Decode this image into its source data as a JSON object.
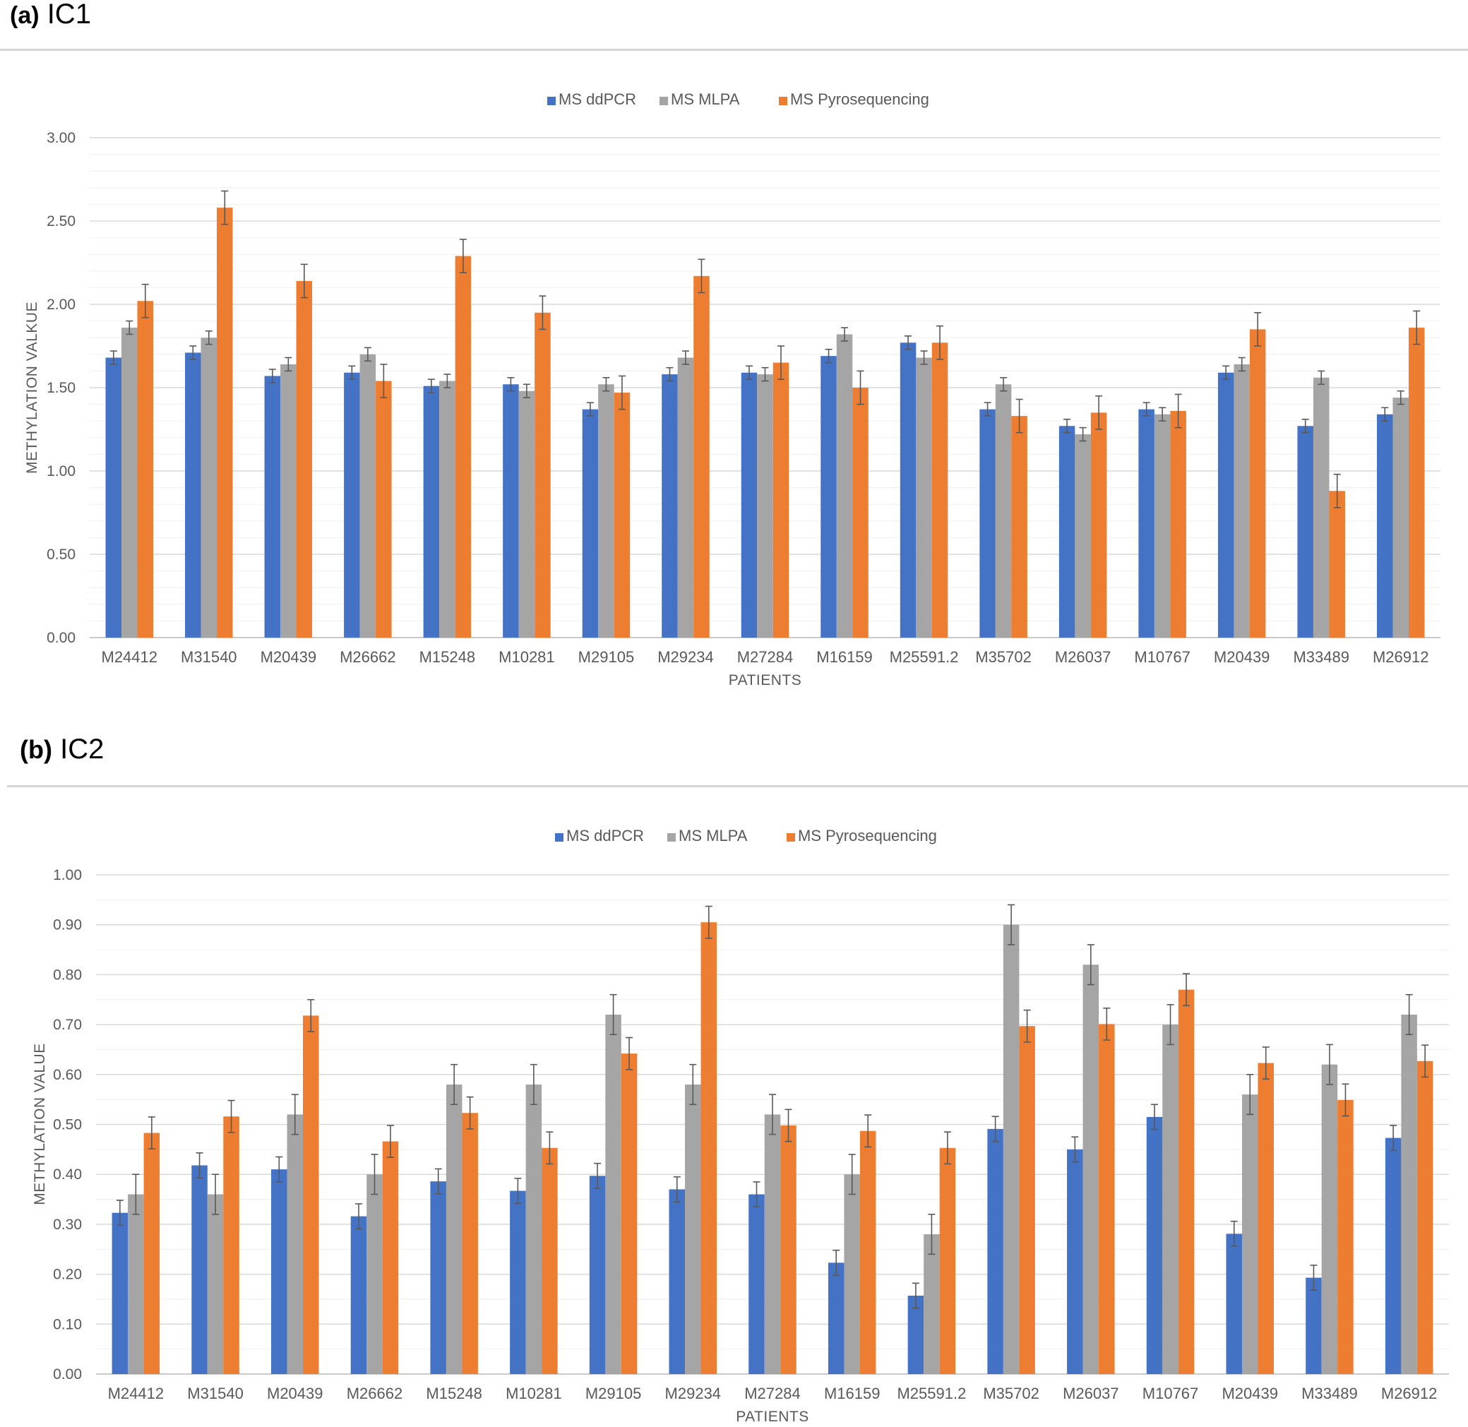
{
  "colors": {
    "ddpcr": "#4472C4",
    "mlpa": "#A5A5A5",
    "pyro": "#ED7D31",
    "grid": "#d9d9d9",
    "error": "#595959"
  },
  "panels": [
    {
      "letter": "(a)",
      "name": "IC1"
    },
    {
      "letter": "(b)",
      "name": "IC2"
    }
  ],
  "chart_data": [
    {
      "type": "bar",
      "ylabel": "METHYLATION VALKUE",
      "xlabel": "PATIENTS",
      "ylim": [
        0,
        3.0
      ],
      "ytick_step": 0.5,
      "ytick_labels": [
        "0.00",
        "0.50",
        "1.00",
        "1.50",
        "2.00",
        "2.50",
        "3.00"
      ],
      "grid": true,
      "legend": "top-center",
      "categories": [
        "M24412",
        "M31540",
        "M20439",
        "M26662",
        "M15248",
        "M10281",
        "M29105",
        "M29234",
        "M27284",
        "M16159",
        "M25591.2",
        "M35702",
        "M26037",
        "M10767",
        "M20439",
        "M33489",
        "M26912"
      ],
      "series": [
        {
          "name": "MS ddPCR",
          "color": "#4472C4",
          "values": [
            1.68,
            1.71,
            1.57,
            1.59,
            1.51,
            1.52,
            1.37,
            1.58,
            1.59,
            1.69,
            1.77,
            1.37,
            1.27,
            1.37,
            1.59,
            1.27,
            1.34
          ],
          "errors": [
            0.04,
            0.04,
            0.04,
            0.04,
            0.04,
            0.04,
            0.04,
            0.04,
            0.04,
            0.04,
            0.04,
            0.04,
            0.04,
            0.04,
            0.04,
            0.04,
            0.04
          ]
        },
        {
          "name": "MS MLPA",
          "color": "#A5A5A5",
          "values": [
            1.86,
            1.8,
            1.64,
            1.7,
            1.54,
            1.48,
            1.52,
            1.68,
            1.58,
            1.82,
            1.68,
            1.52,
            1.22,
            1.34,
            1.64,
            1.56,
            1.44
          ],
          "errors": [
            0.04,
            0.04,
            0.04,
            0.04,
            0.04,
            0.04,
            0.04,
            0.04,
            0.04,
            0.04,
            0.04,
            0.04,
            0.04,
            0.04,
            0.04,
            0.04,
            0.04
          ]
        },
        {
          "name": "MS Pyrosequencing",
          "color": "#ED7D31",
          "values": [
            2.02,
            2.58,
            2.14,
            1.54,
            2.29,
            1.95,
            1.47,
            2.17,
            1.65,
            1.5,
            1.77,
            1.33,
            1.35,
            1.36,
            1.85,
            0.88,
            1.86
          ],
          "errors": [
            0.1,
            0.1,
            0.1,
            0.1,
            0.1,
            0.1,
            0.1,
            0.1,
            0.1,
            0.1,
            0.1,
            0.1,
            0.1,
            0.1,
            0.1,
            0.1,
            0.1
          ]
        }
      ]
    },
    {
      "type": "bar",
      "ylabel": "METHYLATION VALUE",
      "xlabel": "PATIENTS",
      "ylim": [
        0,
        1.0
      ],
      "ytick_step": 0.1,
      "ytick_labels": [
        "0.00",
        "0.10",
        "0.20",
        "0.30",
        "0.40",
        "0.50",
        "0.60",
        "0.70",
        "0.80",
        "0.90",
        "1.00"
      ],
      "grid": true,
      "legend": "top-center",
      "categories": [
        "M24412",
        "M31540",
        "M20439",
        "M26662",
        "M15248",
        "M10281",
        "M29105",
        "M29234",
        "M27284",
        "M16159",
        "M25591.2",
        "M35702",
        "M26037",
        "M10767",
        "M20439",
        "M33489",
        "M26912"
      ],
      "series": [
        {
          "name": "MS ddPCR",
          "color": "#4472C4",
          "values": [
            0.323,
            0.418,
            0.41,
            0.316,
            0.386,
            0.367,
            0.397,
            0.37,
            0.36,
            0.223,
            0.157,
            0.491,
            0.45,
            0.515,
            0.281,
            0.193,
            0.473
          ],
          "errors": [
            0.025,
            0.025,
            0.025,
            0.025,
            0.025,
            0.025,
            0.025,
            0.025,
            0.025,
            0.025,
            0.025,
            0.025,
            0.025,
            0.025,
            0.025,
            0.025,
            0.025
          ]
        },
        {
          "name": "MS MLPA",
          "color": "#A5A5A5",
          "values": [
            0.36,
            0.36,
            0.52,
            0.4,
            0.58,
            0.58,
            0.72,
            0.58,
            0.52,
            0.4,
            0.28,
            0.9,
            0.82,
            0.7,
            0.56,
            0.62,
            0.72
          ],
          "errors": [
            0.04,
            0.04,
            0.04,
            0.04,
            0.04,
            0.04,
            0.04,
            0.04,
            0.04,
            0.04,
            0.04,
            0.04,
            0.04,
            0.04,
            0.04,
            0.04,
            0.04
          ]
        },
        {
          "name": "MS Pyrosequencing",
          "color": "#ED7D31",
          "values": [
            0.483,
            0.516,
            0.718,
            0.466,
            0.523,
            0.453,
            0.642,
            0.905,
            0.498,
            0.487,
            0.453,
            0.697,
            0.701,
            0.77,
            0.623,
            0.549,
            0.627
          ],
          "errors": [
            0.032,
            0.032,
            0.032,
            0.032,
            0.032,
            0.032,
            0.032,
            0.032,
            0.032,
            0.032,
            0.032,
            0.032,
            0.032,
            0.032,
            0.032,
            0.032,
            0.032
          ]
        }
      ]
    }
  ]
}
